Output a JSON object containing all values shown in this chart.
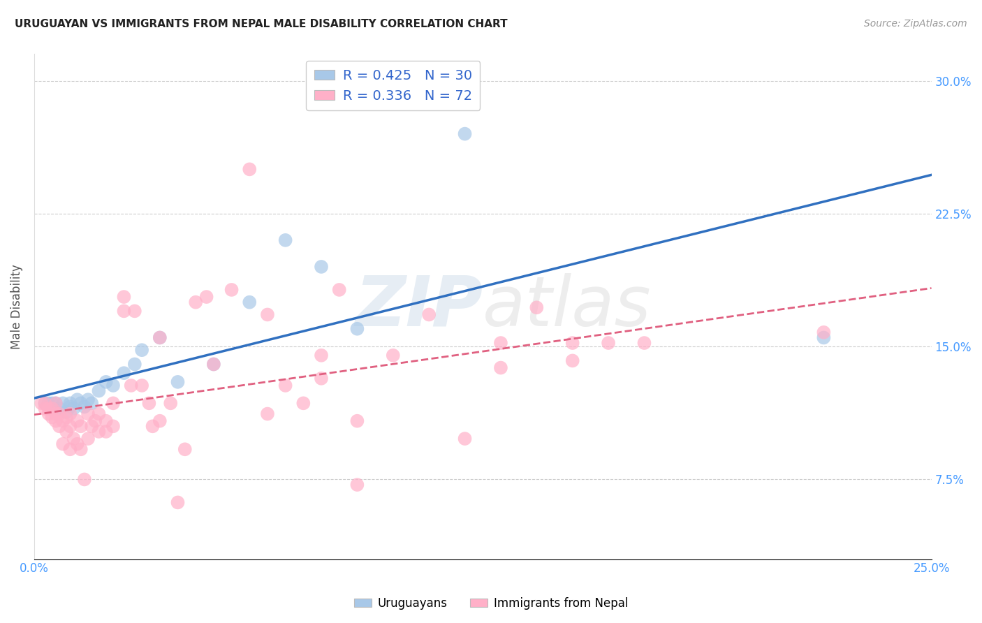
{
  "title": "URUGUAYAN VS IMMIGRANTS FROM NEPAL MALE DISABILITY CORRELATION CHART",
  "source": "Source: ZipAtlas.com",
  "ylabel": "Male Disability",
  "xlim": [
    0.0,
    0.25
  ],
  "ylim": [
    0.03,
    0.315
  ],
  "xticks": [
    0.0,
    0.05,
    0.1,
    0.15,
    0.2,
    0.25
  ],
  "xtick_labels": [
    "0.0%",
    "",
    "",
    "",
    "",
    "25.0%"
  ],
  "ytick_labels": [
    "7.5%",
    "15.0%",
    "22.5%",
    "30.0%"
  ],
  "yticks": [
    0.075,
    0.15,
    0.225,
    0.3
  ],
  "legend1_R": "0.425",
  "legend1_N": "30",
  "legend2_R": "0.336",
  "legend2_N": "72",
  "blue_color": "#a8c8e8",
  "pink_color": "#ffb0c8",
  "blue_line_color": "#3070c0",
  "pink_line_color": "#e06080",
  "blue_scatter": [
    [
      0.003,
      0.118
    ],
    [
      0.004,
      0.118
    ],
    [
      0.005,
      0.118
    ],
    [
      0.006,
      0.118
    ],
    [
      0.007,
      0.115
    ],
    [
      0.008,
      0.118
    ],
    [
      0.009,
      0.113
    ],
    [
      0.01,
      0.116
    ],
    [
      0.01,
      0.118
    ],
    [
      0.011,
      0.115
    ],
    [
      0.012,
      0.12
    ],
    [
      0.013,
      0.118
    ],
    [
      0.014,
      0.116
    ],
    [
      0.015,
      0.12
    ],
    [
      0.016,
      0.118
    ],
    [
      0.018,
      0.125
    ],
    [
      0.02,
      0.13
    ],
    [
      0.022,
      0.128
    ],
    [
      0.025,
      0.135
    ],
    [
      0.028,
      0.14
    ],
    [
      0.03,
      0.148
    ],
    [
      0.035,
      0.155
    ],
    [
      0.04,
      0.13
    ],
    [
      0.05,
      0.14
    ],
    [
      0.06,
      0.175
    ],
    [
      0.07,
      0.21
    ],
    [
      0.08,
      0.195
    ],
    [
      0.09,
      0.16
    ],
    [
      0.12,
      0.27
    ],
    [
      0.22,
      0.155
    ]
  ],
  "pink_scatter": [
    [
      0.002,
      0.118
    ],
    [
      0.003,
      0.115
    ],
    [
      0.003,
      0.118
    ],
    [
      0.004,
      0.112
    ],
    [
      0.004,
      0.115
    ],
    [
      0.005,
      0.11
    ],
    [
      0.005,
      0.115
    ],
    [
      0.006,
      0.108
    ],
    [
      0.006,
      0.112
    ],
    [
      0.006,
      0.118
    ],
    [
      0.007,
      0.105
    ],
    [
      0.007,
      0.112
    ],
    [
      0.008,
      0.095
    ],
    [
      0.008,
      0.108
    ],
    [
      0.009,
      0.102
    ],
    [
      0.009,
      0.11
    ],
    [
      0.01,
      0.092
    ],
    [
      0.01,
      0.105
    ],
    [
      0.01,
      0.112
    ],
    [
      0.011,
      0.098
    ],
    [
      0.012,
      0.095
    ],
    [
      0.012,
      0.108
    ],
    [
      0.013,
      0.092
    ],
    [
      0.013,
      0.105
    ],
    [
      0.014,
      0.075
    ],
    [
      0.015,
      0.098
    ],
    [
      0.015,
      0.112
    ],
    [
      0.016,
      0.105
    ],
    [
      0.017,
      0.108
    ],
    [
      0.018,
      0.102
    ],
    [
      0.018,
      0.112
    ],
    [
      0.02,
      0.102
    ],
    [
      0.02,
      0.108
    ],
    [
      0.022,
      0.105
    ],
    [
      0.022,
      0.118
    ],
    [
      0.025,
      0.17
    ],
    [
      0.025,
      0.178
    ],
    [
      0.027,
      0.128
    ],
    [
      0.028,
      0.17
    ],
    [
      0.03,
      0.128
    ],
    [
      0.032,
      0.118
    ],
    [
      0.033,
      0.105
    ],
    [
      0.035,
      0.108
    ],
    [
      0.035,
      0.155
    ],
    [
      0.038,
      0.118
    ],
    [
      0.04,
      0.062
    ],
    [
      0.042,
      0.092
    ],
    [
      0.045,
      0.175
    ],
    [
      0.048,
      0.178
    ],
    [
      0.05,
      0.14
    ],
    [
      0.055,
      0.182
    ],
    [
      0.06,
      0.25
    ],
    [
      0.065,
      0.112
    ],
    [
      0.065,
      0.168
    ],
    [
      0.07,
      0.128
    ],
    [
      0.075,
      0.118
    ],
    [
      0.08,
      0.132
    ],
    [
      0.08,
      0.145
    ],
    [
      0.085,
      0.182
    ],
    [
      0.09,
      0.072
    ],
    [
      0.09,
      0.108
    ],
    [
      0.1,
      0.145
    ],
    [
      0.11,
      0.168
    ],
    [
      0.12,
      0.098
    ],
    [
      0.13,
      0.138
    ],
    [
      0.13,
      0.152
    ],
    [
      0.14,
      0.172
    ],
    [
      0.15,
      0.142
    ],
    [
      0.15,
      0.152
    ],
    [
      0.16,
      0.152
    ],
    [
      0.17,
      0.152
    ],
    [
      0.22,
      0.158
    ]
  ],
  "watermark_zip": "ZIP",
  "watermark_atlas": "atlas",
  "background_color": "#ffffff",
  "grid_color": "#cccccc"
}
